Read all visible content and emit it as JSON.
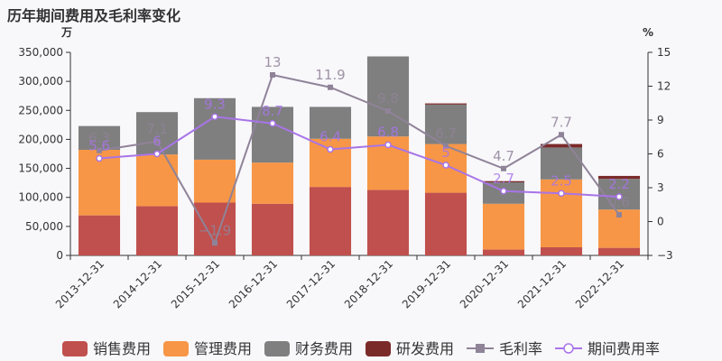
{
  "chart_data": {
    "type": "bar",
    "title": "历年期间费用及毛利率变化",
    "left_unit": "万",
    "right_unit": "%",
    "categories": [
      "2013-12-31",
      "2014-12-31",
      "2015-12-31",
      "2016-12-31",
      "2017-12-31",
      "2018-12-31",
      "2019-12-31",
      "2020-12-31",
      "2021-12-31",
      "2022-12-31"
    ],
    "left_axis": {
      "min": 0,
      "max": 350000,
      "ticks": [
        0,
        50000,
        100000,
        150000,
        200000,
        250000,
        300000,
        350000
      ],
      "tick_labels": [
        "0",
        "50,000",
        "100,000",
        "150,000",
        "200,000",
        "250,000",
        "300,000",
        "350,000"
      ]
    },
    "right_axis": {
      "min": -3,
      "max": 15,
      "ticks": [
        -3,
        0,
        3,
        6,
        9,
        12,
        15
      ],
      "tick_labels": [
        "−3",
        "0",
        "3",
        "6",
        "9",
        "12",
        "15"
      ]
    },
    "stacked_series": [
      {
        "name": "销售费用",
        "color": "#c0504d",
        "values": [
          69000,
          85000,
          91000,
          89000,
          118000,
          113000,
          108000,
          10000,
          14000,
          13000
        ]
      },
      {
        "name": "管理费用",
        "color": "#f79646",
        "values": [
          113000,
          89000,
          74000,
          71000,
          83000,
          92000,
          84000,
          79000,
          117000,
          66000
        ]
      },
      {
        "name": "财务费用",
        "color": "#7f7f7f",
        "values": [
          41000,
          73000,
          106000,
          96000,
          55000,
          138000,
          68000,
          37000,
          55000,
          53000
        ]
      },
      {
        "name": "研发费用",
        "color": "#7b2a2a",
        "values": [
          0,
          0,
          0,
          0,
          0,
          0,
          2000,
          2000,
          6000,
          5000
        ]
      }
    ],
    "line_series": [
      {
        "name": "毛利率",
        "color": "#8f8398",
        "marker": "square",
        "values": [
          6.3,
          7.1,
          -1.9,
          13,
          11.9,
          9.8,
          6.7,
          4.7,
          7.7,
          0.6
        ],
        "labels": [
          "6.3",
          "7.1",
          "−1.9",
          "13",
          "11.9",
          "9.8",
          "6.7",
          "4.7",
          "7.7",
          "0.6"
        ]
      },
      {
        "name": "期间费用率",
        "color": "#a874e8",
        "marker": "circle",
        "values": [
          5.6,
          6,
          9.3,
          8.7,
          6.4,
          6.8,
          5,
          2.7,
          2.5,
          2.2
        ],
        "labels": [
          "5.6",
          "6",
          "9.3",
          "8.7",
          "6.4",
          "6.8",
          "5",
          "2.7",
          "2.5",
          "2.2"
        ]
      }
    ],
    "legend_position": "bottom",
    "grid": false
  }
}
